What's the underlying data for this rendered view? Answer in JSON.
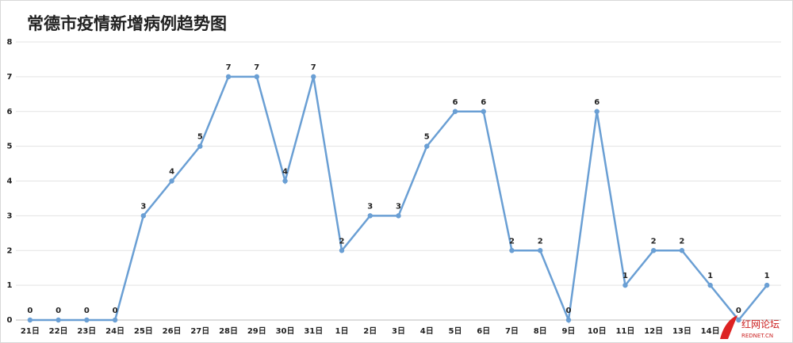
{
  "chart_data": {
    "type": "line",
    "title": "常德市疫情新增病例趋势图",
    "categories": [
      "21日",
      "22日",
      "23日",
      "24日",
      "25日",
      "26日",
      "27日",
      "28日",
      "29日",
      "30日",
      "31日",
      "1日",
      "2日",
      "3日",
      "4日",
      "5日",
      "6日",
      "7日",
      "8日",
      "9日",
      "10日",
      "11日",
      "12日",
      "13日",
      "14日",
      null,
      null
    ],
    "values": [
      0,
      0,
      0,
      0,
      3,
      4,
      5,
      7,
      7,
      4,
      7,
      2,
      3,
      3,
      5,
      6,
      6,
      2,
      2,
      0,
      6,
      1,
      2,
      2,
      1,
      0,
      1
    ],
    "color": "#6a9fd4",
    "ylim": [
      0,
      8
    ],
    "yticks": [
      0,
      1,
      2,
      3,
      4,
      5,
      6,
      7,
      8
    ],
    "grid": true
  },
  "watermark": [
    "红网论坛",
    "REDNET.CN"
  ]
}
